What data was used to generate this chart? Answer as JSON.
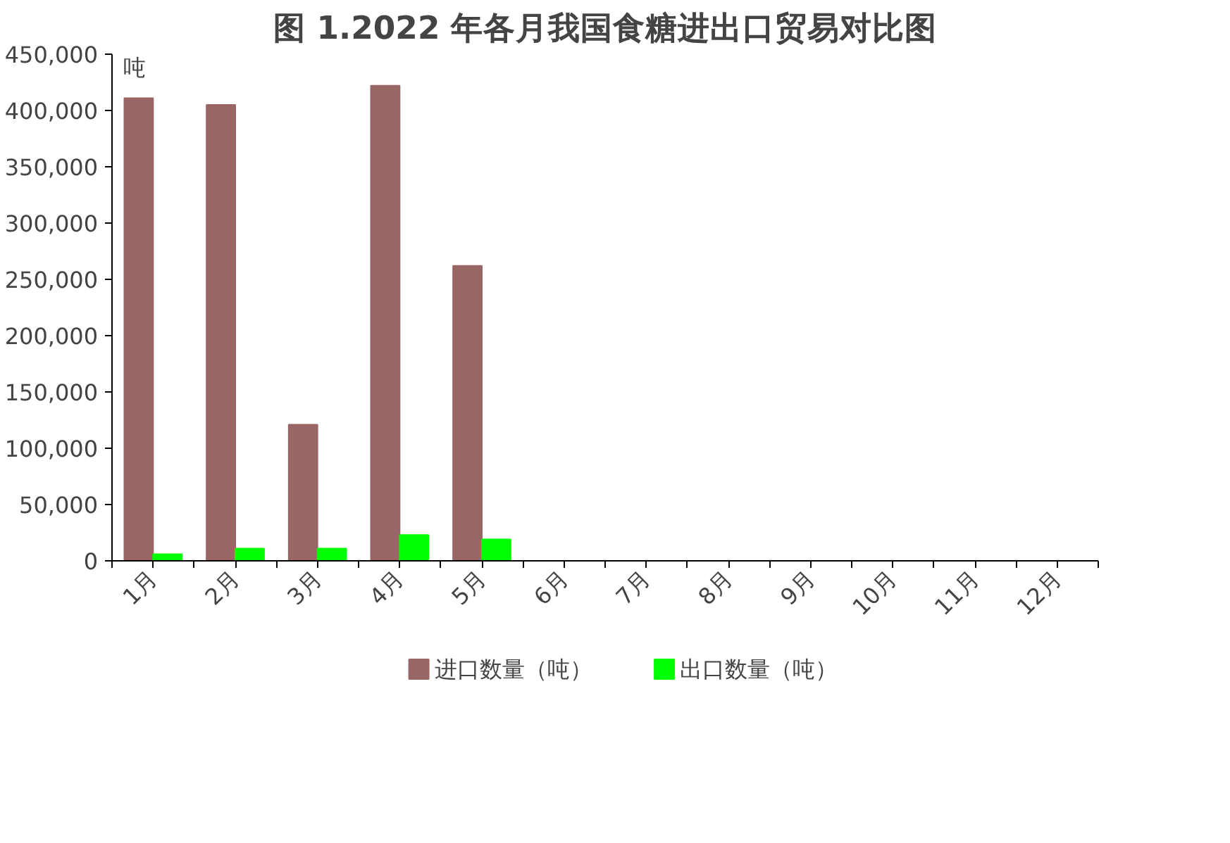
{
  "chart_data": {
    "type": "bar",
    "title": "图 1.2022 年各月我国食糖进出口贸易对比图",
    "ylabel": "吨",
    "categories": [
      "1月",
      "2月",
      "3月",
      "4月",
      "5月",
      "6月",
      "7月",
      "8月",
      "9月",
      "10月",
      "11月",
      "12月"
    ],
    "series": [
      {
        "name": "进口数量（吨）",
        "color": "#996666",
        "values": [
          411000,
          405000,
          121000,
          422000,
          262000,
          null,
          null,
          null,
          null,
          null,
          null,
          null
        ]
      },
      {
        "name": "出口数量（吨）",
        "color": "#00ff00",
        "values": [
          6000,
          11000,
          11000,
          23000,
          19000,
          null,
          null,
          null,
          null,
          null,
          null,
          null
        ]
      }
    ],
    "ylim": [
      0,
      450000
    ],
    "yticks": [
      0,
      {
        "value": 50000,
        "label": "50,000"
      },
      {
        "value": 100000,
        "label": "100,000"
      },
      {
        "value": 150000,
        "label": "150,000"
      },
      {
        "value": 200000,
        "label": "200,000"
      },
      {
        "value": 250000,
        "label": "250,000"
      },
      {
        "value": 300000,
        "label": "300,000"
      },
      {
        "value": 350000,
        "label": "350,000"
      },
      {
        "value": 400000,
        "label": "400,000"
      },
      {
        "value": 450000,
        "label": "450,000"
      }
    ],
    "grid": false,
    "legend": "bottom"
  }
}
